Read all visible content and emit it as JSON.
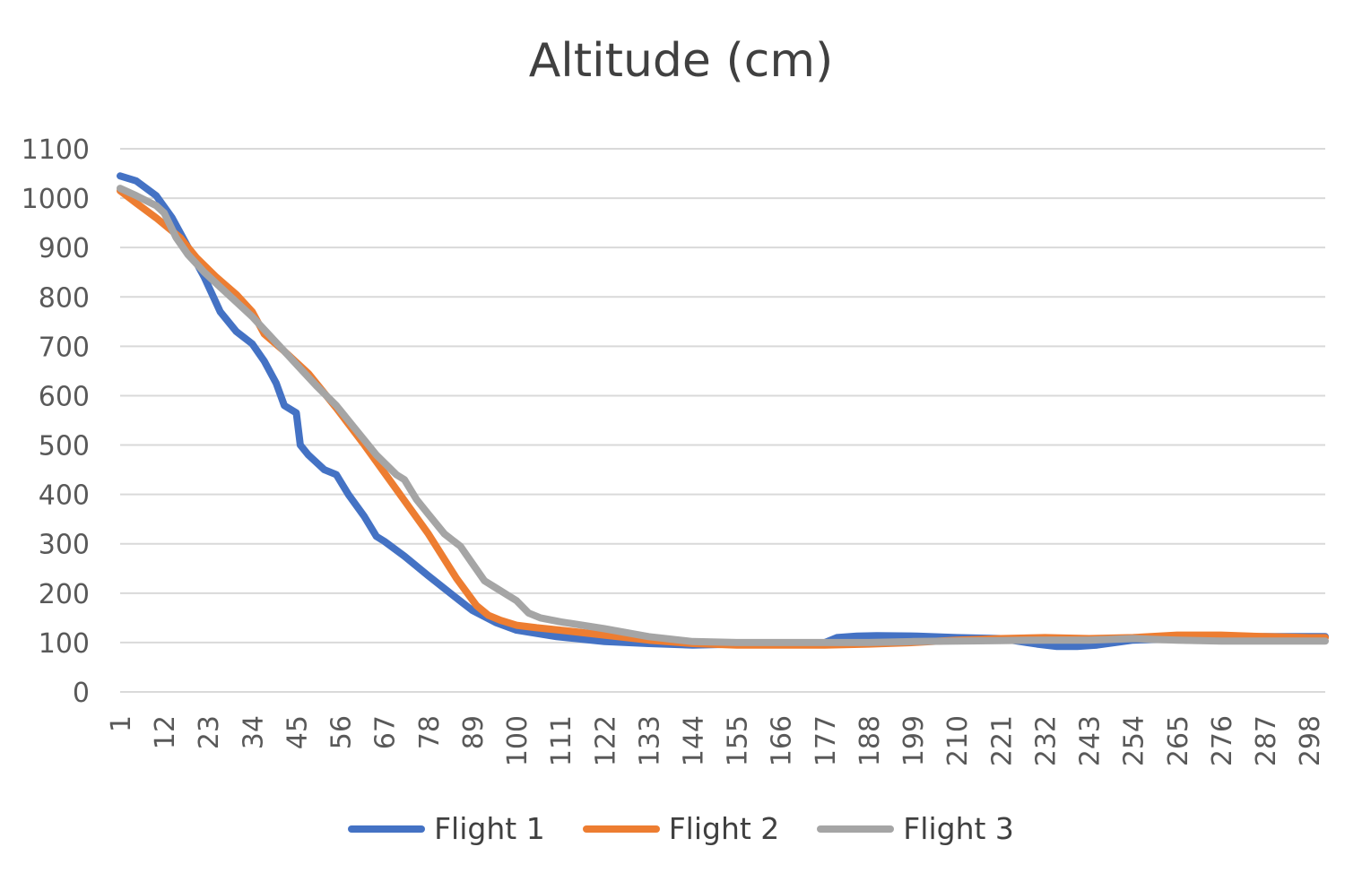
{
  "chart_data": {
    "type": "line",
    "title": "Altitude (cm)",
    "xlabel": "",
    "ylabel": "",
    "ylim": [
      0,
      1100
    ],
    "yticks": [
      0,
      100,
      200,
      300,
      400,
      500,
      600,
      700,
      800,
      900,
      1000,
      1100
    ],
    "xlim": [
      1,
      302
    ],
    "xticks": [
      1,
      12,
      23,
      34,
      45,
      56,
      67,
      78,
      89,
      100,
      111,
      122,
      133,
      144,
      155,
      166,
      177,
      188,
      199,
      210,
      221,
      232,
      243,
      254,
      265,
      276,
      287,
      298
    ],
    "grid": true,
    "legend_position": "bottom",
    "series": [
      {
        "name": "Flight 1",
        "color": "#4472C4",
        "x": [
          1,
          5,
          10,
          14,
          18,
          22,
          26,
          30,
          34,
          37,
          40,
          42,
          45,
          46,
          48,
          52,
          55,
          58,
          62,
          65,
          67,
          72,
          78,
          85,
          89,
          95,
          100,
          110,
          122,
          133,
          144,
          155,
          166,
          177,
          180,
          185,
          190,
          200,
          210,
          221,
          230,
          235,
          240,
          245,
          254,
          265,
          276,
          287,
          298,
          302
        ],
        "values": [
          1045,
          1035,
          1005,
          960,
          900,
          840,
          770,
          730,
          705,
          670,
          625,
          580,
          565,
          500,
          480,
          450,
          440,
          400,
          355,
          315,
          305,
          275,
          235,
          190,
          165,
          140,
          125,
          112,
          102,
          98,
          95,
          97,
          98,
          100,
          110,
          113,
          114,
          113,
          110,
          108,
          97,
          92,
          92,
          95,
          105,
          108,
          110,
          112,
          112,
          112
        ]
      },
      {
        "name": "Flight 2",
        "color": "#ED7D31",
        "x": [
          1,
          5,
          10,
          16,
          20,
          25,
          30,
          34,
          37,
          42,
          48,
          55,
          62,
          70,
          78,
          85,
          90,
          93,
          96,
          100,
          105,
          111,
          122,
          133,
          144,
          155,
          166,
          177,
          188,
          199,
          210,
          221,
          232,
          243,
          254,
          265,
          276,
          287,
          298,
          302
        ],
        "values": [
          1015,
          990,
          960,
          920,
          880,
          840,
          805,
          770,
          725,
          690,
          645,
          575,
          500,
          410,
          320,
          230,
          175,
          155,
          145,
          135,
          130,
          125,
          115,
          105,
          98,
          95,
          95,
          95,
          97,
          100,
          105,
          108,
          110,
          108,
          110,
          115,
          115,
          112,
          110,
          110
        ]
      },
      {
        "name": "Flight 3",
        "color": "#A5A5A5",
        "x": [
          1,
          5,
          10,
          12,
          15,
          18,
          22,
          26,
          30,
          34,
          38,
          42,
          46,
          50,
          55,
          60,
          65,
          70,
          72,
          75,
          78,
          82,
          86,
          89,
          92,
          95,
          98,
          100,
          103,
          106,
          111,
          122,
          133,
          144,
          155,
          166,
          177,
          188,
          199,
          210,
          221,
          232,
          243,
          254,
          265,
          276,
          287,
          298,
          302
        ],
        "values": [
          1020,
          1005,
          985,
          970,
          920,
          885,
          850,
          820,
          790,
          760,
          725,
          690,
          655,
          620,
          580,
          530,
          480,
          440,
          430,
          390,
          360,
          320,
          295,
          260,
          225,
          210,
          195,
          185,
          160,
          150,
          142,
          128,
          112,
          102,
          100,
          100,
          100,
          100,
          102,
          103,
          104,
          105,
          105,
          108,
          105,
          103,
          103,
          103,
          103
        ]
      }
    ]
  }
}
